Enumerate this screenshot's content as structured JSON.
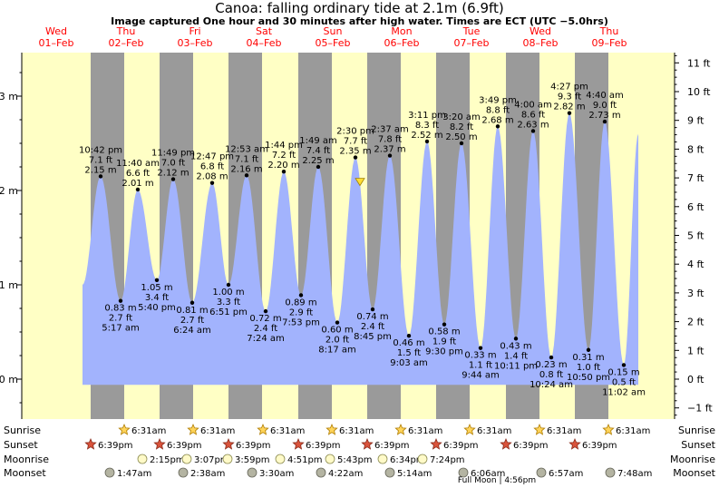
{
  "header": {
    "title": "Canoa: falling  ordinary tide at 2.1m (6.9ft)",
    "subtitle": "Image captured One hour and 30 minutes after high water. Times are ECT (UTC −5.0hrs)"
  },
  "days": [
    {
      "dow": "Wed",
      "date": "01–Feb"
    },
    {
      "dow": "Thu",
      "date": "02–Feb"
    },
    {
      "dow": "Fri",
      "date": "03–Feb"
    },
    {
      "dow": "Sat",
      "date": "04–Feb"
    },
    {
      "dow": "Sun",
      "date": "05–Feb"
    },
    {
      "dow": "Mon",
      "date": "06–Feb"
    },
    {
      "dow": "Tue",
      "date": "07–Feb"
    },
    {
      "dow": "Wed",
      "date": "08–Feb"
    },
    {
      "dow": "Thu",
      "date": "09–Feb"
    }
  ],
  "chart_data": {
    "type": "area",
    "ylabel_left_unit": "m",
    "ylabel_right_unit": "ft",
    "left_ticks": [
      "0 m",
      "1 m",
      "2 m",
      "3 m"
    ],
    "right_ticks": [
      "−1 ft",
      "0 ft",
      "1 ft",
      "2 ft",
      "3 ft",
      "4 ft",
      "5 ft",
      "6 ft",
      "7 ft",
      "8 ft",
      "9 ft",
      "10 ft",
      "11 ft"
    ],
    "colors": {
      "tide_fill": "#a2b3fd",
      "day": "#ffffc5",
      "night": "#9a9a9a"
    },
    "tide_points": [
      {
        "kind": "high",
        "time": "10:42 pm",
        "ft": "7.1 ft",
        "m": 2.15
      },
      {
        "kind": "low",
        "time": "5:17 am",
        "ft": "2.7 ft",
        "m": 0.83
      },
      {
        "kind": "high",
        "time": "11:40 am",
        "ft": "6.6 ft",
        "m": 2.01
      },
      {
        "kind": "low",
        "time": "5:40 pm",
        "ft": "3.4 ft",
        "m": 1.05
      },
      {
        "kind": "high",
        "time": "11:49 pm",
        "ft": "7.0 ft",
        "m": 2.12
      },
      {
        "kind": "low",
        "time": "6:24 am",
        "ft": "2.7 ft",
        "m": 0.81
      },
      {
        "kind": "high",
        "time": "12:47 pm",
        "ft": "6.8 ft",
        "m": 2.08
      },
      {
        "kind": "low",
        "time": "6:51 pm",
        "ft": "3.3 ft",
        "m": 1.0,
        "m_text": "1.00 m"
      },
      {
        "kind": "high",
        "time": "12:53 am",
        "ft": "7.1 ft",
        "m": 2.16
      },
      {
        "kind": "low",
        "time": "7:24 am",
        "ft": "2.4 ft",
        "m": 0.72
      },
      {
        "kind": "high",
        "time": "1:44 pm",
        "ft": "7.2 ft",
        "m": 2.2,
        "m_text": "2.20 m"
      },
      {
        "kind": "low",
        "time": "7:53 pm",
        "ft": "2.9 ft",
        "m": 0.89
      },
      {
        "kind": "high",
        "time": "1:49 am",
        "ft": "7.4 ft",
        "m": 2.25
      },
      {
        "kind": "low",
        "time": "8:17 am",
        "ft": "2.0 ft",
        "m": 0.6,
        "m_text": "0.60 m"
      },
      {
        "kind": "high",
        "time": "2:30 pm",
        "ft": "7.7 ft",
        "m": 2.35
      },
      {
        "kind": "low",
        "time": "8:45 pm",
        "ft": "2.4 ft",
        "m": 0.74
      },
      {
        "kind": "high",
        "time": "2:37 am",
        "ft": "7.8 ft",
        "m": 2.37
      },
      {
        "kind": "low",
        "time": "9:03 am",
        "ft": "1.5 ft",
        "m": 0.46
      },
      {
        "kind": "high",
        "time": "3:11 pm",
        "ft": "8.3 ft",
        "m": 2.52
      },
      {
        "kind": "low",
        "time": "9:30 pm",
        "ft": "1.9 ft",
        "m": 0.58
      },
      {
        "kind": "high",
        "time": "3:20 am",
        "ft": "8.2 ft",
        "m": 2.5,
        "m_text": "2.50 m"
      },
      {
        "kind": "low",
        "time": "9:44 am",
        "ft": "1.1 ft",
        "m": 0.33
      },
      {
        "kind": "high",
        "time": "3:49 pm",
        "ft": "8.8 ft",
        "m": 2.68
      },
      {
        "kind": "low",
        "time": "10:11 pm",
        "ft": "1.4 ft",
        "m": 0.43
      },
      {
        "kind": "high",
        "time": "4:00 am",
        "ft": "8.6 ft",
        "m": 2.63
      },
      {
        "kind": "low",
        "time": "10:24 am",
        "ft": "0.8 ft",
        "m": 0.23
      },
      {
        "kind": "high",
        "time": "4:27 pm",
        "ft": "9.3 ft",
        "m": 2.82
      },
      {
        "kind": "low",
        "time": "10:50 pm",
        "ft": "1.0 ft",
        "m": 0.31
      },
      {
        "kind": "high",
        "time": "4:40 am",
        "ft": "9.0 ft",
        "m": 2.73
      },
      {
        "kind": "low",
        "time": "11:02 am",
        "ft": "0.5 ft",
        "m": 0.15
      }
    ],
    "current_level": {
      "m": 2.1,
      "ft": "6.9 ft"
    }
  },
  "bottom": {
    "row_labels": [
      "Sunrise",
      "Sunset",
      "Moonrise",
      "Moonset"
    ],
    "sunrise": [
      "6:31am",
      "6:31am",
      "6:31am",
      "6:31am",
      "6:31am",
      "6:31am",
      "6:31am",
      "6:31am"
    ],
    "sunset": [
      "6:39pm",
      "6:39pm",
      "6:39pm",
      "6:39pm",
      "6:39pm",
      "6:39pm",
      "6:39pm",
      "6:39pm"
    ],
    "moonrise": [
      "2:15pm",
      "3:07pm",
      "3:59pm",
      "4:51pm",
      "5:43pm",
      "6:34pm",
      "7:24pm"
    ],
    "moonset": [
      "1:47am",
      "2:38am",
      "3:30am",
      "4:22am",
      "5:14am",
      "6:06am",
      "6:57am",
      "7:48am"
    ],
    "full_moon": "Full Moon | 4:56pm"
  }
}
